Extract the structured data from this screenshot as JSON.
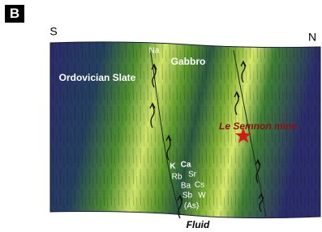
{
  "panel_label": "B",
  "compass": {
    "left": "S",
    "right": "N"
  },
  "units": {
    "slate": "Ordovician Slate",
    "gabbro": "Gabbro"
  },
  "mine": "Le Semnon mine",
  "elements": {
    "na": "Na",
    "k": "K",
    "ca": "Ca",
    "rb": "Rb",
    "sr": "Sr",
    "ba": "Ba",
    "cs": "Cs",
    "sb": "Sb",
    "w": "W",
    "as": "(As)"
  },
  "fluid": "Fluid"
}
